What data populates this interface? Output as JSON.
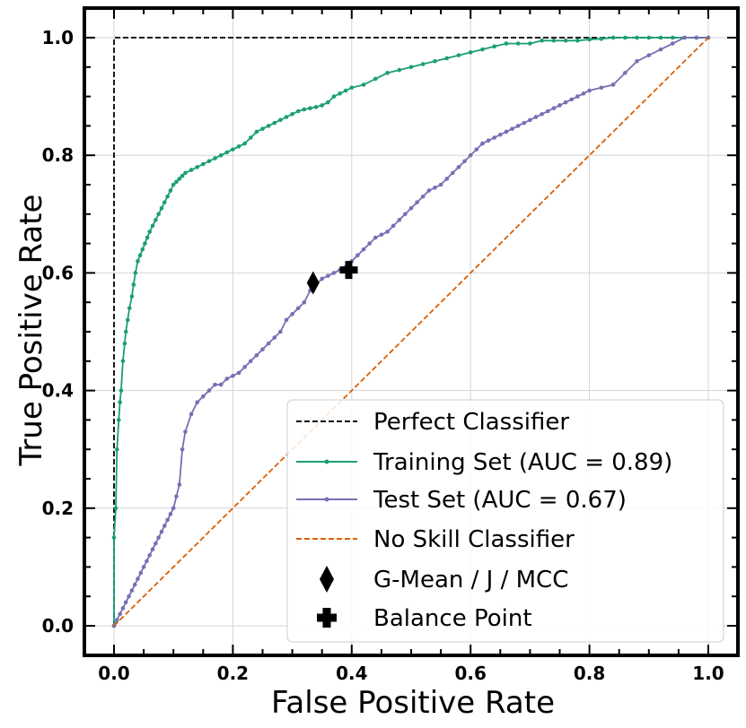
{
  "chart_data": {
    "type": "line",
    "title": "",
    "xlabel": "False Positive Rate",
    "ylabel": "True Positive Rate",
    "xlim": [
      -0.05,
      1.05
    ],
    "ylim": [
      -0.05,
      1.05
    ],
    "xticks": [
      0.0,
      0.2,
      0.4,
      0.6,
      0.8,
      1.0
    ],
    "yticks": [
      0.0,
      0.2,
      0.4,
      0.6,
      0.8,
      1.0
    ],
    "xtick_labels": [
      "0.0",
      "0.2",
      "0.4",
      "0.6",
      "0.8",
      "1.0"
    ],
    "ytick_labels": [
      "0.0",
      "0.2",
      "0.4",
      "0.6",
      "0.8",
      "1.0"
    ],
    "grid": true,
    "legend_position": "bottom-right",
    "series": [
      {
        "name": "Perfect Classifier",
        "style": "dashed",
        "markers": false,
        "color": "#000000",
        "x": [
          0.0,
          0.0,
          1.0
        ],
        "y": [
          0.0,
          1.0,
          1.0
        ]
      },
      {
        "name": "Training Set (AUC = 0.89)",
        "style": "solid",
        "markers": true,
        "color": "#1b9e77",
        "x": [
          0.0,
          0.0,
          0.003,
          0.005,
          0.008,
          0.01,
          0.012,
          0.015,
          0.018,
          0.02,
          0.023,
          0.026,
          0.03,
          0.033,
          0.036,
          0.04,
          0.044,
          0.048,
          0.052,
          0.056,
          0.06,
          0.065,
          0.07,
          0.075,
          0.08,
          0.085,
          0.09,
          0.095,
          0.1,
          0.105,
          0.11,
          0.115,
          0.12,
          0.13,
          0.14,
          0.15,
          0.16,
          0.17,
          0.18,
          0.19,
          0.2,
          0.21,
          0.22,
          0.23,
          0.24,
          0.25,
          0.26,
          0.27,
          0.28,
          0.29,
          0.3,
          0.31,
          0.32,
          0.33,
          0.34,
          0.35,
          0.36,
          0.37,
          0.38,
          0.39,
          0.4,
          0.42,
          0.44,
          0.46,
          0.48,
          0.5,
          0.52,
          0.54,
          0.56,
          0.58,
          0.6,
          0.62,
          0.64,
          0.66,
          0.68,
          0.7,
          0.72,
          0.74,
          0.76,
          0.78,
          0.8,
          0.82,
          0.84,
          0.86,
          0.88,
          0.9,
          0.92,
          0.94,
          0.96,
          0.98,
          1.0
        ],
        "y": [
          0.0,
          0.15,
          0.2,
          0.3,
          0.35,
          0.38,
          0.4,
          0.45,
          0.48,
          0.5,
          0.52,
          0.54,
          0.56,
          0.58,
          0.6,
          0.62,
          0.63,
          0.64,
          0.65,
          0.66,
          0.67,
          0.68,
          0.69,
          0.7,
          0.71,
          0.72,
          0.73,
          0.74,
          0.75,
          0.755,
          0.76,
          0.765,
          0.77,
          0.775,
          0.78,
          0.785,
          0.79,
          0.795,
          0.8,
          0.805,
          0.81,
          0.815,
          0.82,
          0.83,
          0.84,
          0.845,
          0.85,
          0.855,
          0.86,
          0.865,
          0.87,
          0.875,
          0.878,
          0.88,
          0.882,
          0.885,
          0.89,
          0.9,
          0.905,
          0.91,
          0.915,
          0.92,
          0.93,
          0.94,
          0.945,
          0.95,
          0.955,
          0.96,
          0.965,
          0.97,
          0.975,
          0.98,
          0.985,
          0.99,
          0.99,
          0.99,
          0.995,
          0.995,
          0.995,
          0.995,
          0.997,
          0.998,
          1.0,
          1.0,
          1.0,
          1.0,
          1.0,
          1.0,
          1.0,
          1.0,
          1.0
        ]
      },
      {
        "name": "Test Set (AUC = 0.67)",
        "style": "solid",
        "markers": true,
        "color": "#7570b3",
        "x": [
          0.0,
          0.005,
          0.01,
          0.015,
          0.02,
          0.025,
          0.03,
          0.035,
          0.04,
          0.045,
          0.05,
          0.055,
          0.06,
          0.065,
          0.07,
          0.075,
          0.08,
          0.085,
          0.09,
          0.095,
          0.1,
          0.105,
          0.11,
          0.115,
          0.12,
          0.13,
          0.14,
          0.15,
          0.16,
          0.17,
          0.18,
          0.19,
          0.2,
          0.21,
          0.22,
          0.23,
          0.24,
          0.25,
          0.26,
          0.27,
          0.28,
          0.29,
          0.3,
          0.31,
          0.32,
          0.33,
          0.34,
          0.35,
          0.36,
          0.37,
          0.38,
          0.39,
          0.4,
          0.41,
          0.42,
          0.43,
          0.44,
          0.45,
          0.46,
          0.47,
          0.48,
          0.49,
          0.5,
          0.51,
          0.52,
          0.53,
          0.54,
          0.55,
          0.56,
          0.57,
          0.58,
          0.59,
          0.6,
          0.61,
          0.62,
          0.63,
          0.64,
          0.65,
          0.66,
          0.67,
          0.68,
          0.69,
          0.7,
          0.71,
          0.72,
          0.73,
          0.74,
          0.75,
          0.76,
          0.77,
          0.78,
          0.79,
          0.8,
          0.82,
          0.84,
          0.86,
          0.88,
          0.9,
          0.92,
          0.94,
          0.96,
          0.98,
          1.0
        ],
        "y": [
          0.0,
          0.01,
          0.02,
          0.03,
          0.04,
          0.05,
          0.06,
          0.07,
          0.08,
          0.09,
          0.1,
          0.11,
          0.12,
          0.13,
          0.14,
          0.15,
          0.16,
          0.17,
          0.18,
          0.19,
          0.2,
          0.22,
          0.24,
          0.3,
          0.33,
          0.36,
          0.38,
          0.39,
          0.4,
          0.41,
          0.41,
          0.42,
          0.425,
          0.43,
          0.44,
          0.45,
          0.46,
          0.47,
          0.48,
          0.49,
          0.5,
          0.52,
          0.53,
          0.54,
          0.55,
          0.57,
          0.58,
          0.59,
          0.595,
          0.6,
          0.605,
          0.61,
          0.62,
          0.63,
          0.64,
          0.65,
          0.66,
          0.665,
          0.67,
          0.68,
          0.69,
          0.7,
          0.71,
          0.72,
          0.73,
          0.74,
          0.745,
          0.75,
          0.76,
          0.77,
          0.78,
          0.79,
          0.8,
          0.81,
          0.82,
          0.825,
          0.83,
          0.835,
          0.84,
          0.845,
          0.85,
          0.855,
          0.86,
          0.865,
          0.87,
          0.875,
          0.88,
          0.885,
          0.89,
          0.895,
          0.9,
          0.905,
          0.91,
          0.915,
          0.92,
          0.94,
          0.96,
          0.97,
          0.98,
          0.99,
          1.0,
          1.0,
          1.0
        ]
      },
      {
        "name": "No Skill Classifier",
        "style": "dashed",
        "markers": false,
        "color": "#d95f02",
        "x": [
          0.0,
          1.0
        ],
        "y": [
          0.0,
          1.0
        ]
      }
    ],
    "points": [
      {
        "name": "G-Mean / J / MCC",
        "marker": "diamond",
        "color": "#000000",
        "x": 0.335,
        "y": 0.583
      },
      {
        "name": "Balance Point",
        "marker": "plus",
        "color": "#000000",
        "x": 0.395,
        "y": 0.605
      }
    ]
  }
}
